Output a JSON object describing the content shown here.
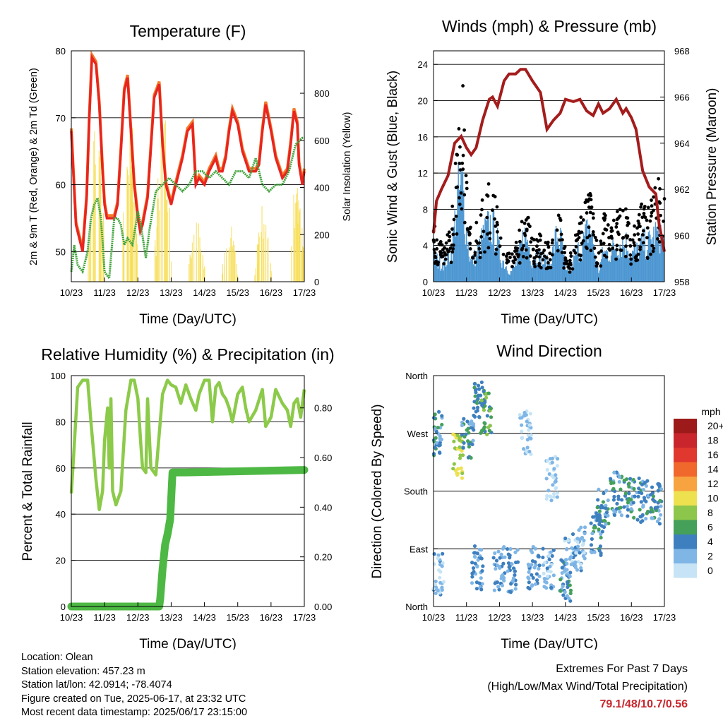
{
  "colors": {
    "temp_2m": "#e8251f",
    "temp_9m": "#f47a2a",
    "dewpoint": "#3fa43b",
    "solar": "#f7df5c",
    "gust": "#000000",
    "sonic_wind": "#4d97d2",
    "pressure": "#a41c1c",
    "rh": "#8cca4a",
    "precip": "#4db843",
    "extremes": "#c8262c"
  },
  "x_ticks": [
    "10/23",
    "11/23",
    "12/23",
    "13/23",
    "14/23",
    "15/23",
    "16/23",
    "17/23"
  ],
  "chart_data": [
    {
      "id": "temperature",
      "type": "line",
      "title": "Temperature (F)",
      "xlabel": "Time (Day/UTC)",
      "ylabel": "2m & 9m T (Red, Orange) & 2m Td (Green)",
      "ylabel_right": "Solar Insolation (Yellow)",
      "x_range": [
        10.96,
        17.96
      ],
      "ylim": [
        45.5,
        80
      ],
      "ylim_right": [
        0,
        980
      ],
      "yticks": [
        50,
        60,
        70,
        80
      ],
      "yticks_right": [
        0,
        200,
        400,
        600,
        800
      ],
      "series": [
        {
          "key": "temp",
          "x": [
            10.96,
            11.03,
            11.1,
            11.2,
            11.3,
            11.42,
            11.5,
            11.58,
            11.7,
            11.8,
            11.9,
            11.96,
            12.03,
            12.15,
            12.25,
            12.35,
            12.45,
            12.55,
            12.65,
            12.75,
            12.85,
            12.96,
            13.03,
            13.1,
            13.25,
            13.45,
            13.6,
            13.7,
            13.8,
            13.96,
            14.1,
            14.3,
            14.45,
            14.6,
            14.7,
            14.8,
            14.96,
            15.1,
            15.3,
            15.4,
            15.5,
            15.6,
            15.7,
            15.8,
            15.96,
            16.1,
            16.3,
            16.4,
            16.5,
            16.6,
            16.7,
            16.8,
            16.96,
            17.1,
            17.3,
            17.45,
            17.55,
            17.65,
            17.75,
            17.8,
            17.9,
            17.96
          ],
          "values": [
            68,
            61,
            54,
            52,
            50,
            58,
            70,
            79,
            78,
            72,
            62,
            57,
            55,
            55,
            55,
            57,
            65,
            74,
            76,
            68,
            60,
            55,
            53,
            54,
            58,
            73,
            75,
            66,
            60,
            57,
            60,
            64,
            68,
            69,
            60,
            61,
            60,
            62,
            64,
            62,
            62,
            64,
            68,
            71,
            69,
            65,
            62,
            62,
            62,
            63,
            68,
            72,
            68,
            64,
            61,
            62,
            66,
            71,
            69,
            63,
            60,
            62
          ]
        },
        {
          "key": "dewpoint",
          "x": [
            10.96,
            11.05,
            11.15,
            11.3,
            11.45,
            11.55,
            11.65,
            11.75,
            11.85,
            11.96,
            12.1,
            12.25,
            12.35,
            12.45,
            12.55,
            12.65,
            12.8,
            12.96,
            13.05,
            13.2,
            13.3,
            13.5,
            13.7,
            13.9,
            14.1,
            14.3,
            14.5,
            14.7,
            14.9,
            15.1,
            15.3,
            15.5,
            15.7,
            15.9,
            16.1,
            16.3,
            16.5,
            16.7,
            16.9,
            17.1,
            17.3,
            17.5,
            17.7,
            17.9,
            17.96
          ],
          "values": [
            47,
            51,
            48,
            47,
            50,
            55,
            57,
            58,
            55,
            47,
            46,
            55,
            55,
            54,
            51,
            52,
            51,
            56,
            54,
            49,
            53,
            59,
            60,
            61,
            60,
            59,
            60,
            62,
            62,
            61,
            62,
            61,
            60,
            62,
            62,
            61,
            64,
            60,
            59,
            60,
            60,
            62,
            66,
            67,
            67
          ]
        }
      ],
      "solar_peaks": [
        [
          11.72,
          1.0
        ],
        [
          12.72,
          0.96
        ],
        [
          13.72,
          0.95
        ],
        [
          14.72,
          0.35
        ],
        [
          15.72,
          0.3
        ],
        [
          16.72,
          0.4
        ],
        [
          17.72,
          0.55
        ]
      ]
    },
    {
      "id": "winds-pressure",
      "type": "line",
      "title": "Winds (mph) & Pressure (mb)",
      "xlabel": "Time (Day/UTC)",
      "ylabel": "Sonic Wind & Gust (Blue, Black)",
      "ylabel_right": "Station Pressure (Maroon)",
      "x_range": [
        10.96,
        17.96
      ],
      "ylim": [
        0,
        25.5
      ],
      "ylim_right": [
        958,
        968
      ],
      "yticks": [
        0,
        4,
        8,
        12,
        16,
        20,
        24
      ],
      "yticks_right": [
        958,
        960,
        962,
        964,
        966,
        968
      ],
      "series": [
        {
          "key": "pressure",
          "x": [
            10.96,
            11.05,
            11.2,
            11.4,
            11.6,
            11.8,
            11.96,
            12.1,
            12.25,
            12.45,
            12.65,
            12.75,
            12.9,
            13.1,
            13.25,
            13.45,
            13.6,
            13.75,
            13.96,
            14.2,
            14.4,
            14.6,
            14.8,
            14.96,
            15.2,
            15.4,
            15.6,
            15.8,
            15.96,
            16.1,
            16.3,
            16.5,
            16.7,
            16.8,
            16.96,
            17.1,
            17.3,
            17.5,
            17.7,
            17.8,
            17.96
          ],
          "values": [
            960.1,
            961.5,
            962.0,
            962.6,
            964.0,
            964.3,
            963.8,
            963.5,
            963.8,
            965.0,
            965.9,
            966.0,
            965.6,
            966.7,
            967.0,
            967.0,
            967.2,
            967.2,
            966.7,
            966.2,
            964.6,
            965.0,
            965.3,
            965.9,
            965.8,
            965.9,
            965.4,
            965.2,
            965.7,
            965.3,
            965.5,
            965.9,
            965.3,
            965.5,
            965.1,
            964.6,
            962.8,
            962.1,
            961.8,
            960.5,
            959.3
          ]
        },
        {
          "key": "gust_envelope",
          "x": [
            10.96,
            11.1,
            11.3,
            11.5,
            11.7,
            11.85,
            11.96,
            12.1,
            12.3,
            12.5,
            12.7,
            12.85,
            12.96,
            13.1,
            13.3,
            13.5,
            13.7,
            13.85,
            13.96,
            14.1,
            14.3,
            14.5,
            14.7,
            14.85,
            14.96,
            15.1,
            15.3,
            15.5,
            15.7,
            15.85,
            15.96,
            16.1,
            16.3,
            16.5,
            16.7,
            16.85,
            16.96,
            17.1,
            17.3,
            17.5,
            17.7,
            17.85,
            17.96
          ],
          "values": [
            6,
            4,
            4,
            6,
            16,
            20,
            10,
            5,
            6,
            9,
            10,
            8,
            6,
            4,
            3,
            4,
            8,
            6,
            4,
            5,
            4,
            4,
            8,
            6,
            3,
            3,
            5,
            8,
            10,
            5,
            3,
            7,
            6,
            7,
            7,
            8,
            5,
            6,
            8,
            7,
            10,
            10,
            8
          ]
        },
        {
          "key": "sonic_envelope",
          "x": [
            10.96,
            11.1,
            11.3,
            11.5,
            11.7,
            11.85,
            11.96,
            12.1,
            12.3,
            12.5,
            12.7,
            12.85,
            12.96,
            13.1,
            13.3,
            13.5,
            13.7,
            13.85,
            13.96,
            14.1,
            14.3,
            14.5,
            14.7,
            14.85,
            14.96,
            15.1,
            15.3,
            15.5,
            15.7,
            15.85,
            15.96,
            16.1,
            16.3,
            16.5,
            16.7,
            16.85,
            16.96,
            17.1,
            17.3,
            17.5,
            17.7,
            17.85,
            17.96
          ],
          "values": [
            3,
            2,
            2,
            3,
            9,
            10,
            5,
            2,
            3,
            5,
            6,
            5,
            3,
            2,
            1,
            2,
            5,
            4,
            2,
            3,
            2,
            2,
            5,
            4,
            1,
            1,
            3,
            4,
            6,
            3,
            1,
            3,
            3,
            4,
            4,
            4,
            3,
            3,
            4,
            4,
            5,
            5,
            4
          ]
        }
      ]
    },
    {
      "id": "humidity-precip",
      "type": "line",
      "title": "Relative Humidity (%) & Precipitation (in)",
      "xlabel": "Time (Day/UTC)",
      "ylabel": "Percent & Total Rainfall",
      "x_range": [
        10.96,
        17.96
      ],
      "ylim": [
        0,
        100
      ],
      "ylim_right": [
        0,
        0.93
      ],
      "yticks": [
        0,
        20,
        40,
        60,
        80,
        100
      ],
      "yticks_right": [
        0.0,
        0.2,
        0.4,
        0.6,
        0.8
      ],
      "series": [
        {
          "key": "rh",
          "x": [
            10.96,
            11.05,
            11.15,
            11.3,
            11.45,
            11.55,
            11.7,
            11.8,
            11.9,
            11.96,
            12.05,
            12.1,
            12.15,
            12.2,
            12.3,
            12.45,
            12.6,
            12.75,
            12.85,
            12.96,
            13.05,
            13.1,
            13.2,
            13.25,
            13.35,
            13.5,
            13.7,
            13.85,
            13.96,
            14.1,
            14.25,
            14.4,
            14.55,
            14.7,
            14.8,
            14.96,
            15.1,
            15.2,
            15.3,
            15.4,
            15.5,
            15.6,
            15.7,
            15.8,
            15.96,
            16.1,
            16.2,
            16.3,
            16.5,
            16.7,
            16.8,
            16.96,
            17.1,
            17.3,
            17.45,
            17.55,
            17.65,
            17.75,
            17.85,
            17.96
          ],
          "values": [
            49,
            70,
            95,
            98,
            98,
            80,
            55,
            42,
            50,
            72,
            86,
            60,
            90,
            50,
            44,
            50,
            85,
            98,
            98,
            90,
            70,
            60,
            58,
            90,
            60,
            57,
            92,
            98,
            96,
            95,
            88,
            96,
            90,
            85,
            92,
            98,
            98,
            80,
            95,
            97,
            92,
            90,
            86,
            80,
            92,
            95,
            86,
            80,
            85,
            94,
            78,
            82,
            94,
            88,
            85,
            78,
            88,
            90,
            82,
            94
          ]
        },
        {
          "key": "precip_in",
          "x": [
            10.96,
            13.6,
            13.63,
            13.7,
            13.78,
            13.85,
            13.93,
            14.0,
            14.1,
            14.4,
            17.96
          ],
          "values": [
            0.0,
            0.0,
            0.03,
            0.15,
            0.25,
            0.29,
            0.35,
            0.54,
            0.54,
            0.54,
            0.55
          ]
        }
      ]
    },
    {
      "id": "wind-direction",
      "type": "scatter",
      "title": "Wind Direction",
      "xlabel": "Time (Day/UTC)",
      "ylabel": "Direction (Colored By Speed)",
      "x_range": [
        10.96,
        17.96
      ],
      "ylim": [
        0,
        360
      ],
      "yticks": [
        "North",
        "East",
        "South",
        "West",
        "North"
      ],
      "legend": {
        "title": "mph",
        "labels": [
          "20+",
          "18",
          "16",
          "14",
          "12",
          "10",
          "8",
          "6",
          "4",
          "2",
          "0"
        ],
        "colors": [
          "#9c1a1a",
          "#c8262c",
          "#e0372f",
          "#f0682c",
          "#f7a340",
          "#ede150",
          "#8cc64a",
          "#45a05a",
          "#3e7fbf",
          "#7fb6e6",
          "#c6e4f6"
        ]
      },
      "clusters": [
        {
          "x": 11.1,
          "dir": 50,
          "spd": 2
        },
        {
          "x": 11.05,
          "dir": 270,
          "spd": 4
        },
        {
          "x": 11.7,
          "dir": 235,
          "spd": 9
        },
        {
          "x": 12.0,
          "dir": 260,
          "spd": 4
        },
        {
          "x": 12.3,
          "dir": 60,
          "spd": 3
        },
        {
          "x": 12.35,
          "dir": 320,
          "spd": 5
        },
        {
          "x": 12.55,
          "dir": 300,
          "spd": 6
        },
        {
          "x": 12.95,
          "dir": 60,
          "spd": 3
        },
        {
          "x": 13.35,
          "dir": 55,
          "spd": 3
        },
        {
          "x": 13.75,
          "dir": 270,
          "spd": 1
        },
        {
          "x": 14.0,
          "dir": 60,
          "spd": 3
        },
        {
          "x": 14.45,
          "dir": 60,
          "spd": 2
        },
        {
          "x": 14.55,
          "dir": 200,
          "spd": 1
        },
        {
          "x": 14.95,
          "dir": 40,
          "spd": 4
        },
        {
          "x": 15.1,
          "dir": 80,
          "spd": 2
        },
        {
          "x": 15.4,
          "dir": 90,
          "spd": 2
        },
        {
          "x": 15.9,
          "dir": 115,
          "spd": 4
        },
        {
          "x": 16.1,
          "dir": 150,
          "spd": 4
        },
        {
          "x": 16.5,
          "dir": 175,
          "spd": 4
        },
        {
          "x": 16.9,
          "dir": 170,
          "spd": 4
        },
        {
          "x": 17.3,
          "dir": 165,
          "spd": 4
        },
        {
          "x": 17.7,
          "dir": 160,
          "spd": 4
        }
      ]
    }
  ],
  "station": {
    "location": "Location: Olean",
    "elevation": "Station elevation: 457.23 m",
    "latlon": "Station lat/lon: 42.0914; -78.4074",
    "created": "Figure created on Tue, 2025-06-17, at 23:32 UTC",
    "latest": "Most recent data timestamp: 2025/06/17 23:15:00"
  },
  "extremes": {
    "title": "Extremes For Past 7 Days",
    "subtitle": "(High/Low/Max Wind/Total Precipitation)",
    "values": "79.1/48/10.7/0.56"
  }
}
